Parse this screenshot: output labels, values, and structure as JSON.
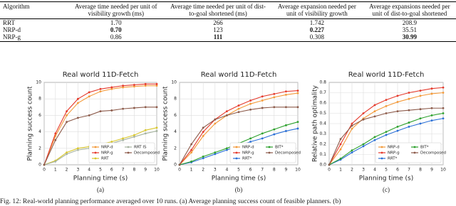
{
  "table": {
    "header": [
      "Algorithm",
      "Average time needed per unit of visibility growth (ms)",
      "Average time needed per unit of dist-to-goal shortened (ms)",
      "Average expansion needed per unit of visibility growth",
      "Average expansions needed per unit of dist-to-goal shortened"
    ],
    "rows": [
      [
        {
          "text": "RRT",
          "bold": false
        },
        {
          "text": "1.70",
          "bold": false
        },
        {
          "text": "266",
          "bold": false
        },
        {
          "text": "1.742",
          "bold": false
        },
        {
          "text": "208.9",
          "bold": false
        }
      ],
      [
        {
          "text": "NRP-d",
          "bold": false
        },
        {
          "text": "0.70",
          "bold": true
        },
        {
          "text": "123",
          "bold": false
        },
        {
          "text": "0.227",
          "bold": true
        },
        {
          "text": "35.51",
          "bold": false
        }
      ],
      [
        {
          "text": "NRP-g",
          "bold": false
        },
        {
          "text": "0.86",
          "bold": false
        },
        {
          "text": "111",
          "bold": true
        },
        {
          "text": "0.308",
          "bold": false
        },
        {
          "text": "30.99",
          "bold": true
        }
      ]
    ]
  },
  "chart_data": [
    {
      "type": "line",
      "title": "Real world 11D-Fetch",
      "x_label": "Planning time (s)",
      "y_label": "Planning success count",
      "subcaption": "(a)",
      "x": [
        0,
        1,
        2,
        3,
        4,
        5,
        6,
        7,
        8,
        9,
        10
      ],
      "xlim": [
        0,
        10
      ],
      "xticks": [
        0,
        1,
        2,
        3,
        4,
        5,
        6,
        7,
        8,
        9,
        10
      ],
      "ylim": [
        0,
        10
      ],
      "yticks": [
        0,
        2,
        4,
        6,
        8,
        10
      ],
      "grid": true,
      "legend": "lower right",
      "series": [
        {
          "name": "NRP-d",
          "color": "#f39a3a",
          "values": [
            0,
            3.5,
            6,
            7.5,
            8.3,
            8.9,
            9.2,
            9.4,
            9.5,
            9.6,
            9.6
          ]
        },
        {
          "name": "NRP-g",
          "color": "#e5392b",
          "values": [
            0,
            3.8,
            6.5,
            8,
            8.8,
            9.2,
            9.4,
            9.6,
            9.7,
            9.8,
            9.8
          ]
        },
        {
          "name": "RRT",
          "color": "#d8c62a",
          "values": [
            0,
            0.5,
            1.5,
            2,
            2.2,
            2.5,
            2.8,
            3.2,
            3.6,
            4.2,
            4.5
          ]
        },
        {
          "name": "RRT IS",
          "color": "#a6b3a0",
          "values": [
            0,
            0.4,
            1.3,
            1.8,
            2,
            2.2,
            2.6,
            3,
            3.4,
            3.8,
            4.1
          ]
        },
        {
          "name": "Decomposed",
          "color": "#8c5a4a",
          "values": [
            0,
            3,
            5.2,
            5.7,
            6,
            6.5,
            6.6,
            6.8,
            6.9,
            7,
            7
          ]
        }
      ]
    },
    {
      "type": "line",
      "title": "Real world 11D-Fetch",
      "x_label": "Planning time (s)",
      "y_label": "Planning success count",
      "subcaption": "(b)",
      "x": [
        0,
        1,
        2,
        3,
        4,
        5,
        6,
        7,
        8,
        9,
        10
      ],
      "xlim": [
        0,
        10
      ],
      "xticks": [
        0,
        1,
        2,
        3,
        4,
        5,
        6,
        7,
        8,
        9,
        10
      ],
      "ylim": [
        0,
        10
      ],
      "yticks": [
        0,
        2,
        4,
        6,
        8,
        10
      ],
      "grid": true,
      "legend": "lower right",
      "series": [
        {
          "name": "NRP-d",
          "color": "#f39a3a",
          "values": [
            0,
            1.5,
            3.5,
            5,
            6,
            6.8,
            7.4,
            7.8,
            8.2,
            8.5,
            8.7
          ]
        },
        {
          "name": "NRP-g",
          "color": "#e5392b",
          "values": [
            0,
            1.8,
            4,
            5.5,
            6.5,
            7.2,
            7.8,
            8.3,
            8.6,
            8.9,
            9
          ]
        },
        {
          "name": "RRT*",
          "color": "#2a6fd6",
          "values": [
            0,
            0.3,
            0.8,
            1.3,
            1.8,
            2.3,
            2.8,
            3.2,
            3.7,
            4.1,
            4.4
          ]
        },
        {
          "name": "BIT*",
          "color": "#2ca02c",
          "values": [
            0,
            0.4,
            1,
            1.5,
            2,
            2.6,
            3.2,
            3.8,
            4.3,
            4.8,
            5.2
          ]
        },
        {
          "name": "Decomposed",
          "color": "#8c5a4a",
          "values": [
            0,
            2.5,
            4.5,
            5.5,
            6,
            6.4,
            6.7,
            6.9,
            7,
            7,
            7
          ]
        }
      ]
    },
    {
      "type": "line",
      "title": "Real world 11D-Fetch",
      "x_label": "Planning time (s)",
      "y_label": "Relative path optimality",
      "subcaption": "(c)",
      "x": [
        0,
        1,
        2,
        3,
        4,
        5,
        6,
        7,
        8,
        9,
        10
      ],
      "xlim": [
        0,
        10
      ],
      "xticks": [
        0,
        1,
        2,
        3,
        4,
        5,
        6,
        7,
        8,
        9,
        10
      ],
      "ylim": [
        0,
        0.8
      ],
      "yticks": [
        {
          "value": 0,
          "label": "0.0"
        },
        0.1,
        0.2,
        0.3,
        0.4,
        0.5,
        0.6,
        0.7,
        0.8
      ],
      "grid": true,
      "legend": "lower right",
      "series": [
        {
          "name": "NRP-d",
          "color": "#f39a3a",
          "values": [
            0,
            0.15,
            0.35,
            0.45,
            0.52,
            0.57,
            0.61,
            0.64,
            0.67,
            0.69,
            0.7
          ]
        },
        {
          "name": "NRP-g",
          "color": "#e5392b",
          "values": [
            0,
            0.2,
            0.4,
            0.5,
            0.58,
            0.63,
            0.67,
            0.7,
            0.72,
            0.74,
            0.75
          ]
        },
        {
          "name": "RRT*",
          "color": "#2a6fd6",
          "values": [
            0,
            0.05,
            0.12,
            0.18,
            0.24,
            0.29,
            0.33,
            0.37,
            0.4,
            0.43,
            0.45
          ]
        },
        {
          "name": "BIT*",
          "color": "#2ca02c",
          "values": [
            0,
            0.06,
            0.14,
            0.2,
            0.27,
            0.32,
            0.37,
            0.41,
            0.45,
            0.48,
            0.5
          ]
        },
        {
          "name": "Decomposed",
          "color": "#8c5a4a",
          "values": [
            0,
            0.25,
            0.38,
            0.44,
            0.47,
            0.5,
            0.52,
            0.53,
            0.54,
            0.55,
            0.55
          ]
        }
      ]
    }
  ],
  "caption": "Fig. 12: Real-world planning performance averaged over 10 runs. (a) Average planning success count of feasible planners. (b)"
}
